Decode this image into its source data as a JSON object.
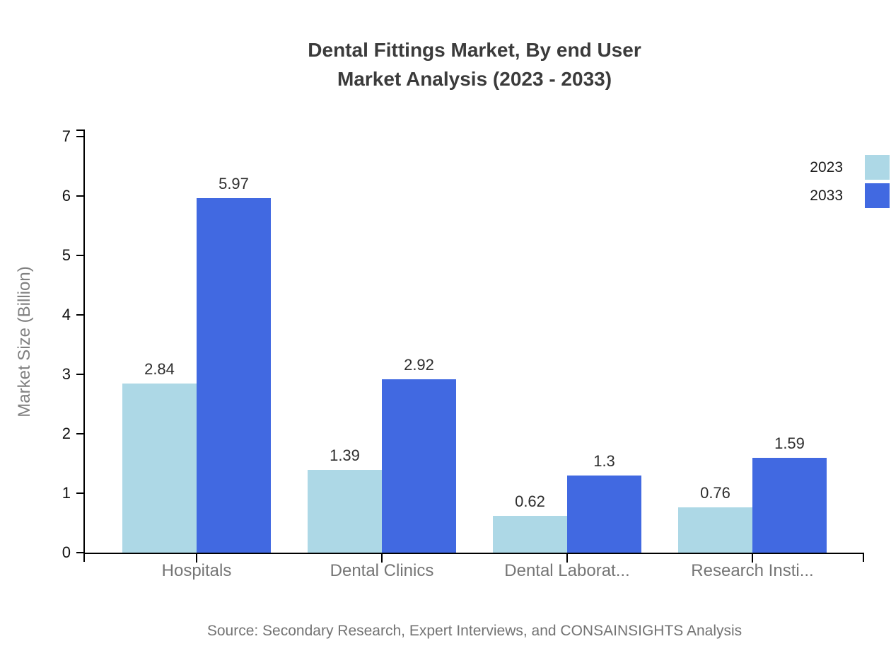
{
  "title": {
    "line1": "Dental Fittings Market, By end User",
    "line2": "Market Analysis (2023 - 2033)"
  },
  "source_text": "Source: Secondary Research, Expert Interviews, and CONSAINSIGHTS Analysis",
  "chart_data": {
    "type": "bar",
    "title": "Dental Fittings Market, By end User Market Analysis (2023 - 2033)",
    "categories": [
      "Hospitals",
      "Dental Clinics",
      "Dental Laborat...",
      "Research Insti..."
    ],
    "series": [
      {
        "name": "2023",
        "color": "#ADD8E6",
        "values": [
          2.84,
          1.39,
          0.62,
          0.76
        ]
      },
      {
        "name": "2033",
        "color": "#4169E1",
        "values": [
          5.97,
          2.92,
          1.3,
          1.59
        ]
      }
    ],
    "value_labels": [
      [
        "2.84",
        "1.39",
        "0.62",
        "0.76"
      ],
      [
        "5.97",
        "2.92",
        "1.3",
        "1.59"
      ]
    ],
    "xlabel": "",
    "ylabel": "Market Size (Billion)",
    "ylim": [
      0,
      7.16
    ],
    "yticks": [
      0,
      1,
      2,
      3,
      4,
      5,
      6,
      7
    ],
    "grid": false,
    "legend_position": "top-right",
    "legend_entries": [
      "2023",
      "2033"
    ]
  },
  "colors": {
    "series_2023": "#ADD8E6",
    "series_2033": "#4169E1",
    "title_text": "#3b3b3b",
    "axis": "#000000",
    "category_text": "#757575",
    "muted_text": "#737373"
  }
}
